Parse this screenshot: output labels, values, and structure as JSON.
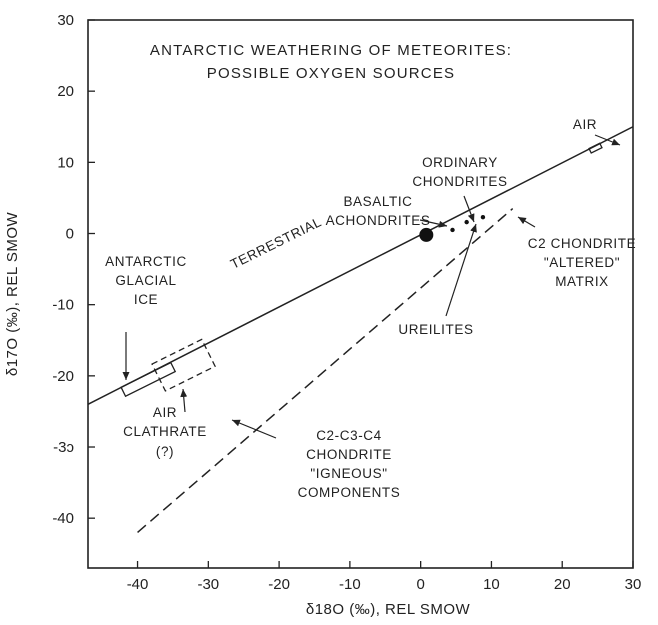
{
  "chart_data": {
    "type": "line",
    "title": "ANTARCTIC WEATHERING OF METEORITES:",
    "subtitle": "POSSIBLE OXYGEN SOURCES",
    "xlabel": "δ18O (‰), REL SMOW",
    "ylabel": "δ17O (‰), REL SMOW",
    "xlim": [
      -47,
      30
    ],
    "ylim": [
      -47,
      30
    ],
    "xticks": [
      -40,
      -30,
      -20,
      -10,
      0,
      10,
      20,
      30
    ],
    "yticks": [
      30,
      20,
      10,
      0,
      -10,
      -20,
      -30,
      -40
    ],
    "xtick_labels": [
      "-40",
      "-30",
      "-20",
      "-10",
      "0",
      "10",
      "20",
      "30"
    ],
    "ytick_labels": [
      "30",
      "20",
      "10",
      "0",
      "-10",
      "-20",
      "-3ↄ",
      "-40"
    ],
    "grid": false,
    "series": [
      {
        "name": "TERRESTRIAL",
        "style": "solid",
        "x": [
          -47,
          30
        ],
        "y": [
          -24,
          15
        ]
      },
      {
        "name": "",
        "style": "dashed",
        "x": [
          -40,
          13
        ],
        "y": [
          -42,
          3.5
        ]
      }
    ],
    "points": [
      {
        "x": 0.8,
        "y": -0.2,
        "size": "large"
      },
      {
        "x": 4.5,
        "y": 0.5,
        "size": "small"
      },
      {
        "x": 6.5,
        "y": 1.6,
        "size": "small"
      },
      {
        "x": 8.8,
        "y": 2.3,
        "size": "small"
      }
    ],
    "regions": [
      {
        "x": [
          -42,
          -35
        ],
        "y": [
          -23,
          -18
        ]
      },
      {
        "x": [
          -37,
          -30
        ],
        "y": [
          -23,
          -14
        ]
      },
      {
        "x": [
          24.7,
          24.7
        ],
        "y": [
          11.5,
          12.5
        ]
      }
    ],
    "annotations": {
      "terrestrial": "TERRESTRIAL",
      "air": "AIR",
      "ordinary_1": "ORDINARY",
      "ordinary_2": "CHONDRITES",
      "basaltic_1": "BASALTIC",
      "basaltic_2": "ACHONDRITES",
      "c2_1": "C2 CHONDRITE",
      "c2_2": "\"ALTERED\"",
      "c2_3": "MATRIX",
      "ureilites": "UREILITES",
      "ice_1": "ANTARCTIC",
      "ice_2": "GLACIAL",
      "ice_3": "ICE",
      "clathrate_1": "AIR",
      "clathrate_2": "CLATHRATE",
      "clathrate_3": "(?)",
      "igneous_1": "C2-C3-C4",
      "igneous_2": "CHONDRITE",
      "igneous_3": "\"IGNEOUS\"",
      "igneous_4": "COMPONENTS"
    }
  }
}
